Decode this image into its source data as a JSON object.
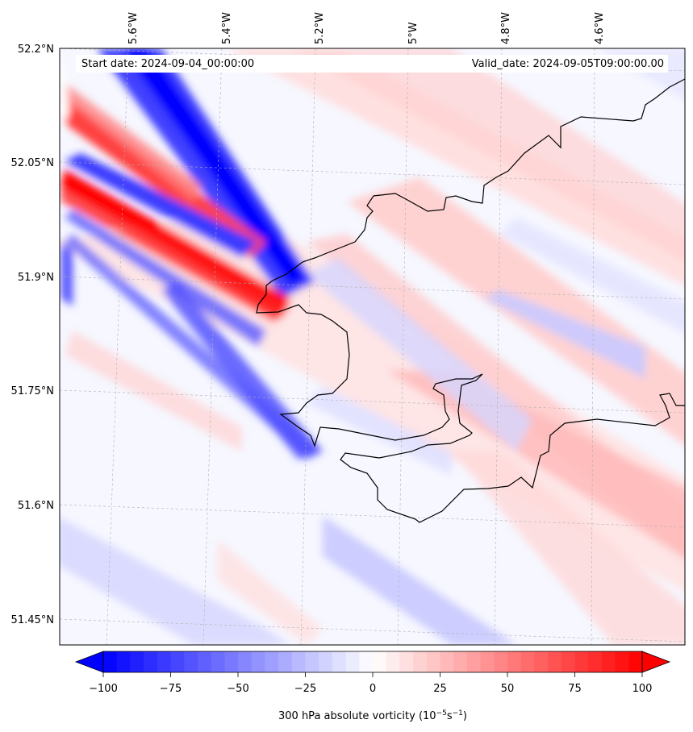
{
  "map": {
    "annotations": {
      "start": "Start date: 2024-09-04_00:00:00",
      "valid": "Valid_date: 2024-09-05T09:00:00.00"
    },
    "lat_ticks": [
      "52.2°N",
      "52.05°N",
      "51.9°N",
      "51.75°N",
      "51.6°N",
      "51.45°N"
    ],
    "lon_ticks": [
      "5.6°W",
      "5.4°W",
      "5.2°W",
      "5°W",
      "4.8°W",
      "4.6°W"
    ],
    "coastline_color": "#000000",
    "gridline_color": "#b0b0b0"
  },
  "colorbar": {
    "label": "300 hPa absolute vorticity",
    "unit_base": "(10",
    "unit_exp1": "−5",
    "unit_s": "s",
    "unit_exp2": "−1",
    "unit_close": ")",
    "ticks": [
      "−100",
      "−75",
      "−50",
      "−25",
      "0",
      "25",
      "50",
      "75",
      "100"
    ],
    "min_color": "#0000ff",
    "mid_color": "#ffffff",
    "max_color": "#ff0000"
  }
}
